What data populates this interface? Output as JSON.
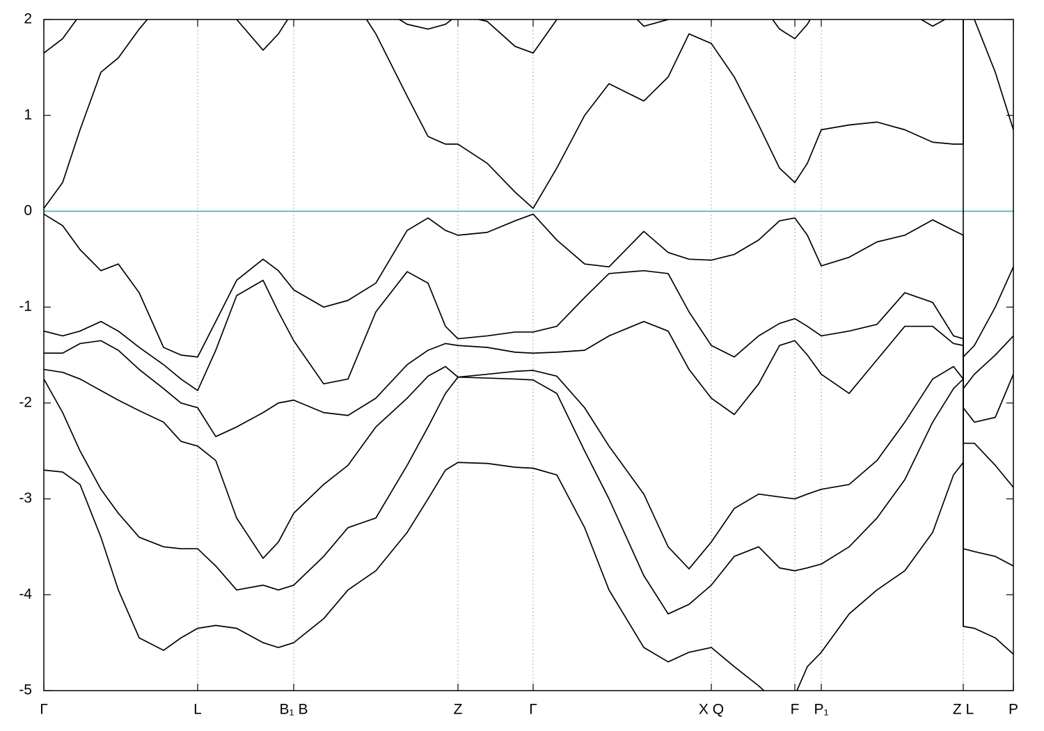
{
  "chart_data": {
    "type": "line",
    "x": [
      0,
      27,
      52,
      82,
      107,
      137,
      172,
      197,
      221,
      247,
      277,
      315,
      337,
      359,
      402,
      437,
      477,
      522,
      552,
      577,
      595,
      637,
      677,
      703,
      737,
      777,
      812,
      862,
      897,
      927,
      959,
      992,
      1027,
      1057,
      1079,
      1097,
      1117,
      1157,
      1197,
      1237,
      1277,
      1307,
      1321,
      1321,
      1337,
      1367,
      1393
    ],
    "xlim": [
      0,
      1393
    ],
    "xticks": [
      {
        "value": 0,
        "label": "Γ"
      },
      {
        "value": 221,
        "label": "L"
      },
      {
        "value": 359,
        "label": "B₁ B"
      },
      {
        "value": 595,
        "label": "Z"
      },
      {
        "value": 703,
        "label": "Γ"
      },
      {
        "value": 959,
        "label": "X Q"
      },
      {
        "value": 1079,
        "label": "F"
      },
      {
        "value": 1117,
        "label": "P₁"
      },
      {
        "value": 1321,
        "label": "Z L"
      },
      {
        "value": 1393,
        "label": "P"
      }
    ],
    "ylim": [
      -5,
      2
    ],
    "yticks": [
      -5,
      -4,
      -3,
      -2,
      -1,
      0,
      1,
      2
    ],
    "grid": true,
    "fermi_level": 0,
    "fermi_color": "#5ab4cf",
    "series": [
      {
        "color": "#000000",
        "values": [
          0.03,
          0.3,
          0.85,
          1.45,
          1.6,
          1.9,
          2.2,
          2.4,
          2.5,
          2.3,
          2.0,
          1.68,
          1.85,
          2.1,
          2.3,
          2.3,
          1.85,
          1.2,
          0.78,
          0.7,
          0.7,
          0.5,
          0.2,
          0.03,
          0.45,
          1.0,
          1.33,
          1.15,
          1.4,
          1.85,
          1.75,
          1.4,
          0.9,
          0.45,
          0.3,
          0.5,
          0.85,
          0.9,
          0.93,
          0.85,
          0.72,
          0.7,
          0.7,
          2.05,
          2.0,
          1.45,
          0.85
        ]
      },
      {
        "color": "#000000",
        "values": [
          1.65,
          1.8,
          2.05,
          2.3,
          2.4,
          2.45,
          2.5,
          2.6,
          2.6,
          2.5,
          2.4,
          2.4,
          2.3,
          2.3,
          2.3,
          2.3,
          2.15,
          1.95,
          1.9,
          1.95,
          2.05,
          1.98,
          1.72,
          1.65,
          2.0,
          2.3,
          2.3,
          1.93,
          2.0,
          2.2,
          2.3,
          2.3,
          2.2,
          1.9,
          1.8,
          1.95,
          2.2,
          2.2,
          2.2,
          2.1,
          1.93,
          2.05,
          2.1,
          2.1,
          2.2,
          2.3,
          2.3
        ]
      },
      {
        "color": "#000000",
        "values": [
          -0.03,
          -0.15,
          -0.4,
          -0.62,
          -0.55,
          -0.85,
          -1.42,
          -1.5,
          -1.52,
          -1.15,
          -0.72,
          -0.5,
          -0.62,
          -0.82,
          -1.0,
          -0.93,
          -0.75,
          -0.2,
          -0.07,
          -0.2,
          -0.25,
          -0.22,
          -0.1,
          -0.03,
          -0.3,
          -0.55,
          -0.58,
          -0.21,
          -0.43,
          -0.5,
          -0.51,
          -0.45,
          -0.3,
          -0.1,
          -0.07,
          -0.25,
          -0.57,
          -0.48,
          -0.32,
          -0.25,
          -0.09,
          -0.2,
          -0.25,
          -1.52,
          -1.4,
          -1.0,
          -0.58
        ]
      },
      {
        "color": "#000000",
        "values": [
          -1.25,
          -1.3,
          -1.25,
          -1.15,
          -1.25,
          -1.42,
          -1.6,
          -1.75,
          -1.87,
          -1.45,
          -0.88,
          -0.72,
          -1.05,
          -1.35,
          -1.8,
          -1.75,
          -1.05,
          -0.63,
          -0.75,
          -1.2,
          -1.33,
          -1.3,
          -1.26,
          -1.26,
          -1.2,
          -0.9,
          -0.65,
          -0.62,
          -0.65,
          -1.05,
          -1.4,
          -1.52,
          -1.3,
          -1.17,
          -1.12,
          -1.2,
          -1.3,
          -1.25,
          -1.18,
          -0.85,
          -0.95,
          -1.3,
          -1.33,
          -1.85,
          -1.7,
          -1.5,
          -1.3
        ]
      },
      {
        "color": "#000000",
        "values": [
          -1.48,
          -1.48,
          -1.38,
          -1.35,
          -1.45,
          -1.65,
          -1.85,
          -2.0,
          -2.05,
          -2.35,
          -2.25,
          -2.1,
          -2.0,
          -1.97,
          -2.1,
          -2.13,
          -1.95,
          -1.6,
          -1.45,
          -1.38,
          -1.4,
          -1.42,
          -1.47,
          -1.48,
          -1.47,
          -1.45,
          -1.3,
          -1.15,
          -1.25,
          -1.65,
          -1.95,
          -2.12,
          -1.8,
          -1.4,
          -1.35,
          -1.5,
          -1.7,
          -1.9,
          -1.55,
          -1.2,
          -1.2,
          -1.38,
          -1.4,
          -2.05,
          -2.2,
          -2.15,
          -1.7
        ]
      },
      {
        "color": "#000000",
        "values": [
          -1.65,
          -1.68,
          -1.75,
          -1.87,
          -1.97,
          -2.08,
          -2.2,
          -2.4,
          -2.45,
          -2.6,
          -3.2,
          -3.62,
          -3.45,
          -3.15,
          -2.85,
          -2.65,
          -2.25,
          -1.95,
          -1.72,
          -1.62,
          -1.73,
          -1.7,
          -1.67,
          -1.66,
          -1.72,
          -2.05,
          -2.45,
          -2.95,
          -3.5,
          -3.73,
          -3.45,
          -3.1,
          -2.95,
          -2.98,
          -3.0,
          -2.95,
          -2.9,
          -2.85,
          -2.6,
          -2.2,
          -1.75,
          -1.62,
          -1.75,
          -2.42,
          -2.42,
          -2.65,
          -2.88
        ]
      },
      {
        "color": "#000000",
        "values": [
          -1.75,
          -2.1,
          -2.5,
          -2.9,
          -3.15,
          -3.4,
          -3.5,
          -3.52,
          -3.52,
          -3.7,
          -3.95,
          -3.9,
          -3.95,
          -3.9,
          -3.6,
          -3.3,
          -3.2,
          -2.65,
          -2.25,
          -1.9,
          -1.73,
          -1.74,
          -1.75,
          -1.76,
          -1.9,
          -2.5,
          -3.0,
          -3.8,
          -4.2,
          -4.1,
          -3.9,
          -3.6,
          -3.5,
          -3.72,
          -3.75,
          -3.72,
          -3.68,
          -3.5,
          -3.2,
          -2.8,
          -2.2,
          -1.85,
          -1.75,
          -3.52,
          -3.55,
          -3.6,
          -3.7
        ]
      },
      {
        "color": "#000000",
        "values": [
          -2.7,
          -2.72,
          -2.85,
          -3.4,
          -3.95,
          -4.45,
          -4.58,
          -4.45,
          -4.35,
          -4.32,
          -4.35,
          -4.5,
          -4.55,
          -4.5,
          -4.25,
          -3.95,
          -3.75,
          -3.35,
          -3.0,
          -2.7,
          -2.62,
          -2.63,
          -2.67,
          -2.68,
          -2.75,
          -3.3,
          -3.95,
          -4.55,
          -4.7,
          -4.6,
          -4.55,
          -4.75,
          -4.95,
          -5.15,
          -5.05,
          -4.75,
          -4.6,
          -4.2,
          -3.95,
          -3.75,
          -3.35,
          -2.75,
          -2.62,
          -4.33,
          -4.35,
          -4.45,
          -4.62
        ]
      }
    ]
  }
}
